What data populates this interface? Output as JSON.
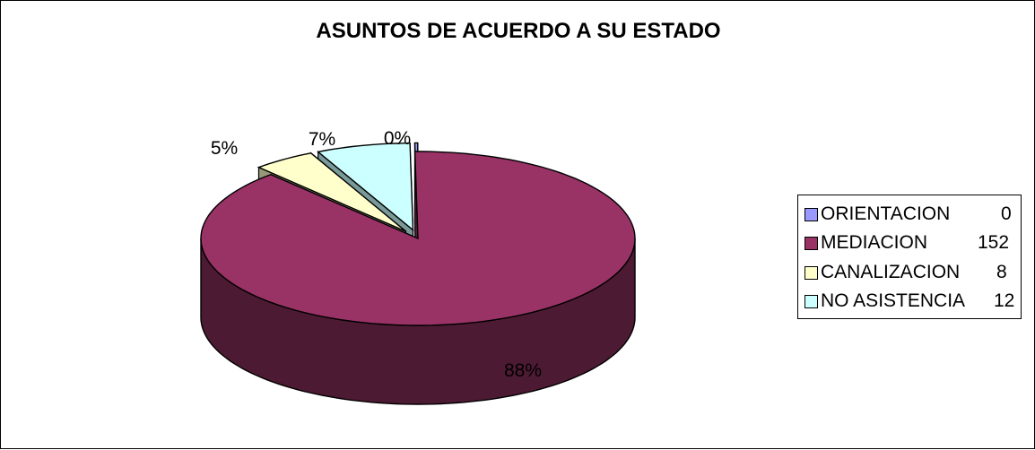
{
  "chart_data": {
    "type": "pie",
    "title": "ASUNTOS DE ACUERDO A SU ESTADO",
    "categories": [
      "ORIENTACION",
      "MEDIACION",
      "CANALIZACION",
      "NO ASISTENCIA"
    ],
    "values": [
      0,
      152,
      8,
      12
    ],
    "percent_labels": [
      "0%",
      "88%",
      "5%",
      "7%"
    ],
    "colors": [
      "#9999ff",
      "#993366",
      "#ffffcc",
      "#ccffff"
    ],
    "three_d": true,
    "exploded": true,
    "legend_position": "right",
    "legend": [
      {
        "label": "ORIENTACION",
        "value": "0"
      },
      {
        "label": "MEDIACION",
        "value": "152"
      },
      {
        "label": "CANALIZACION",
        "value": "8"
      },
      {
        "label": "NO ASISTENCIA",
        "value": "12"
      }
    ]
  }
}
